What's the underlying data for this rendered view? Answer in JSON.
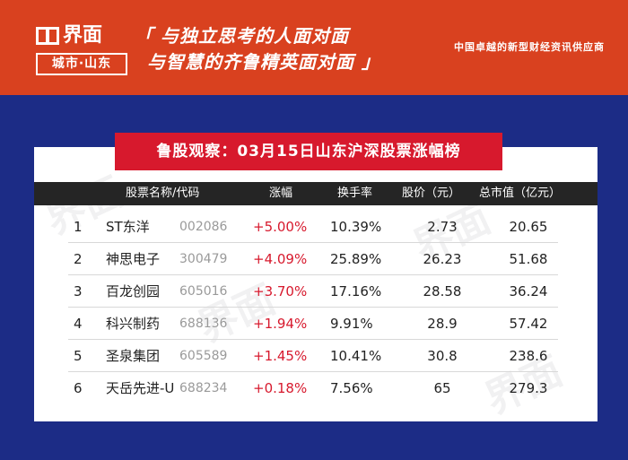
{
  "header": {
    "logo_top": "界面",
    "logo_bottom": "城市·山东",
    "slogan_line1": "「 与独立思考的人面对面",
    "slogan_line2": "与智慧的齐鲁精英面对面 」",
    "tagline": "中国卓越的新型财经资讯供应商"
  },
  "title": "鲁股观察：03月15日山东沪深股票涨幅榜",
  "table": {
    "headers": {
      "name_code": "股票名称/代码",
      "change": "涨幅",
      "turnover": "换手率",
      "price": "股价（元）",
      "market_cap": "总市值（亿元）"
    },
    "rows": [
      {
        "rank": "1",
        "name": "ST东洋",
        "code": "002086",
        "change": "+5.00%",
        "turnover": "10.39%",
        "price": "2.73",
        "market_cap": "20.65"
      },
      {
        "rank": "2",
        "name": "神思电子",
        "code": "300479",
        "change": "+4.09%",
        "turnover": "25.89%",
        "price": "26.23",
        "market_cap": "51.68"
      },
      {
        "rank": "3",
        "name": "百龙创园",
        "code": "605016",
        "change": "+3.70%",
        "turnover": "17.16%",
        "price": "28.58",
        "market_cap": "36.24"
      },
      {
        "rank": "4",
        "name": "科兴制药",
        "code": "688136",
        "change": "+1.94%",
        "turnover": "9.91%",
        "price": "28.9",
        "market_cap": "57.42"
      },
      {
        "rank": "5",
        "name": "圣泉集团",
        "code": "605589",
        "change": "+1.45%",
        "turnover": "10.41%",
        "price": "30.8",
        "market_cap": "238.6"
      },
      {
        "rank": "6",
        "name": "天岳先进-U",
        "code": "688234",
        "change": "+0.18%",
        "turnover": "7.56%",
        "price": "65",
        "market_cap": "279.3"
      }
    ]
  },
  "colors": {
    "header_bg": "#d9411f",
    "page_bg": "#1c2c86",
    "banner_bg": "#d7192d",
    "table_head_bg": "#252525",
    "change_text": "#d7192d"
  },
  "watermark": "界面"
}
